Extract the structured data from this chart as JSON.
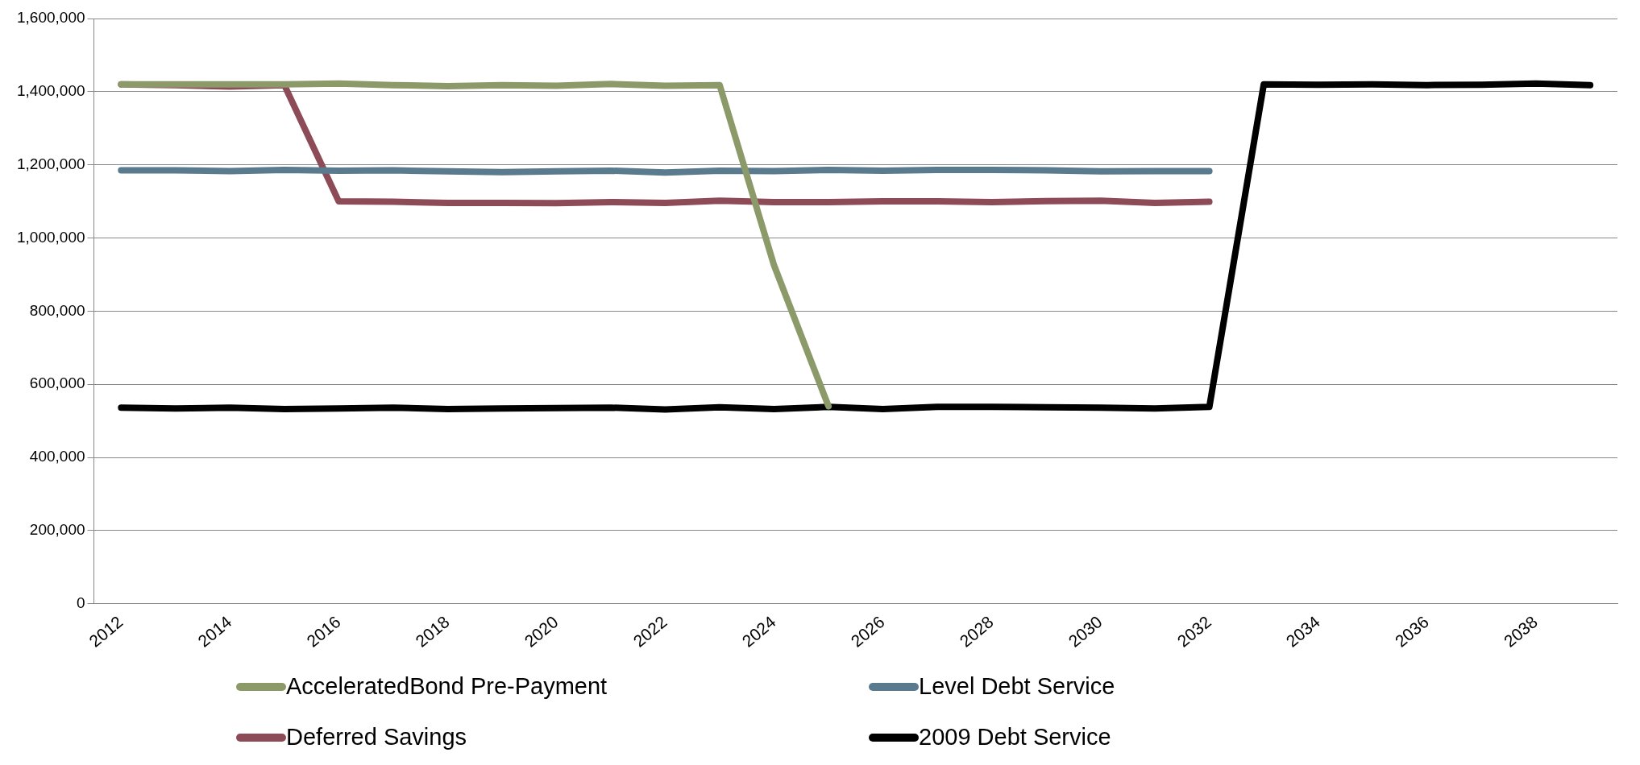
{
  "chart_data": {
    "type": "line",
    "categories": [
      "2012",
      null,
      "2014",
      null,
      "2016",
      null,
      "2018",
      null,
      "2020",
      null,
      "2022",
      null,
      "2024",
      null,
      "2026",
      null,
      "2028",
      null,
      "2030",
      null,
      "2032",
      null,
      "2034",
      null,
      "2036",
      null,
      "2038",
      null
    ],
    "series": [
      {
        "name": "AcceleratedBond Pre-Payment",
        "color": "#8c9a6a",
        "values": [
          1420000,
          1420000,
          1420000,
          1420000,
          1422000,
          1418000,
          1415000,
          1418000,
          1416000,
          1421000,
          1416000,
          1418000,
          925000,
          540000,
          null,
          null,
          null,
          null,
          null,
          null,
          null,
          null,
          null,
          null,
          null,
          null,
          null,
          null
        ]
      },
      {
        "name": "Level Debt Service",
        "color": "#5a7b8e",
        "values": [
          1185000,
          1185000,
          1183000,
          1186000,
          1184000,
          1185000,
          1182000,
          1180000,
          1182000,
          1184000,
          1179000,
          1184000,
          1183000,
          1186000,
          1184000,
          1186000,
          1186000,
          1185000,
          1182000,
          1183000,
          1183000,
          null,
          null,
          null,
          null,
          null,
          null,
          null
        ]
      },
      {
        "name": "Deferred Savings",
        "color": "#8c4b57",
        "values": [
          1420000,
          1418000,
          1414000,
          1418000,
          1100000,
          1099000,
          1096000,
          1096000,
          1095000,
          1098000,
          1096000,
          1102000,
          1098000,
          1098000,
          1100000,
          1100000,
          1098000,
          1101000,
          1102000,
          1096000,
          1099000,
          null,
          null,
          null,
          null,
          null,
          null,
          null
        ]
      },
      {
        "name": "2009 Debt Service",
        "color": "#000000",
        "values": [
          536000,
          534000,
          536000,
          532000,
          534000,
          536000,
          532000,
          534000,
          535000,
          536000,
          531000,
          537000,
          532000,
          538000,
          532000,
          538000,
          538000,
          537000,
          536000,
          534000,
          538000,
          1420000,
          1419000,
          1420000,
          1418000,
          1419000,
          1422000,
          1418000
        ]
      }
    ],
    "ylim": [
      0,
      1600000
    ],
    "yticks": [
      0,
      {
        "value": 200000,
        "label": "200,000"
      },
      {
        "value": 400000,
        "label": "400,000"
      },
      {
        "value": 600000,
        "label": "600,000"
      },
      {
        "value": 800000,
        "label": "800,000"
      },
      {
        "value": 1000000,
        "label": "1,000,000"
      },
      {
        "value": 1200000,
        "label": "1,200,000"
      },
      {
        "value": 1400000,
        "label": "1,400,000"
      },
      {
        "value": 1600000,
        "label": "1,600,000"
      }
    ],
    "grid": "y",
    "legend": "bottom",
    "marker": "none",
    "line_style": "solid"
  }
}
